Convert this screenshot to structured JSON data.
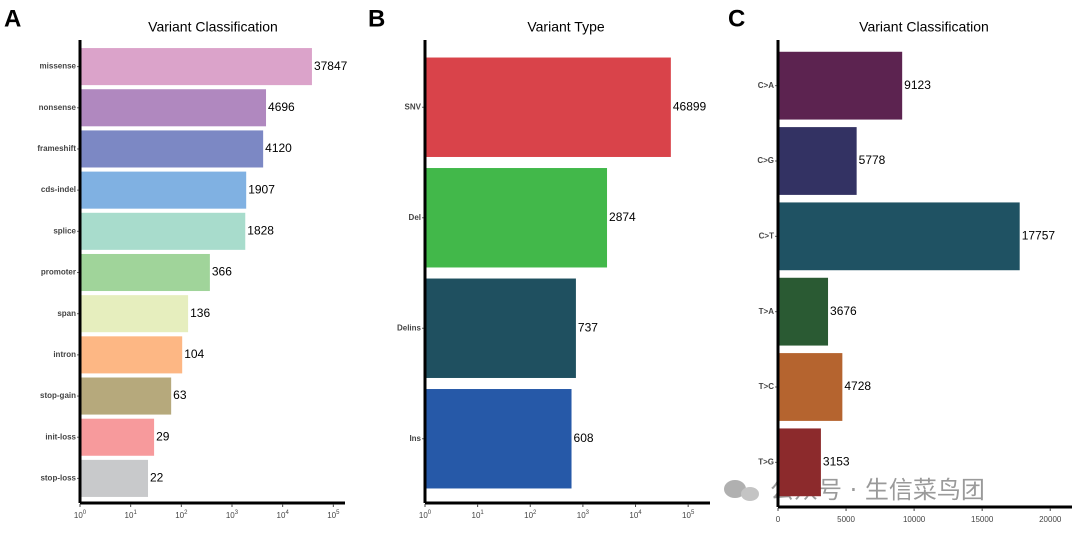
{
  "chart_data": [
    {
      "type": "bar",
      "orientation": "horizontal",
      "panel": "A",
      "title": "Variant Classification",
      "categories": [
        "missense",
        "nonsense",
        "frameshift",
        "cds-indel",
        "splice",
        "promoter",
        "span",
        "intron",
        "stop-gain",
        "init-loss",
        "stop-loss"
      ],
      "values": [
        37847,
        4696,
        4120,
        1907,
        1828,
        366,
        136,
        104,
        63,
        29,
        22
      ],
      "colors": [
        "#dba3ca",
        "#b088bf",
        "#7c88c4",
        "#80b1e2",
        "#a8dccc",
        "#a0d49a",
        "#e6eebe",
        "#fdb784",
        "#b6a97c",
        "#f79a9c",
        "#c8c9cb"
      ],
      "xscale": "log",
      "xlim": [
        1,
        170000
      ],
      "xticks": [
        {
          "value": 1,
          "label": "10^0"
        },
        {
          "value": 10,
          "label": "10^1"
        },
        {
          "value": 100,
          "label": "10^2"
        },
        {
          "value": 1000,
          "label": "10^3"
        },
        {
          "value": 10000,
          "label": "10^4"
        },
        {
          "value": 100000,
          "label": "10^5"
        }
      ]
    },
    {
      "type": "bar",
      "orientation": "horizontal",
      "panel": "B",
      "title": "Variant Type",
      "categories": [
        "SNV",
        "Del",
        "Delins",
        "Ins"
      ],
      "values": [
        46899,
        2874,
        737,
        608
      ],
      "colors": [
        "#d9434a",
        "#42b84a",
        "#1f5060",
        "#2659a8"
      ],
      "xscale": "log",
      "xlim": [
        1,
        260000
      ],
      "xticks": [
        {
          "value": 1,
          "label": "10^0"
        },
        {
          "value": 10,
          "label": "10^1"
        },
        {
          "value": 100,
          "label": "10^2"
        },
        {
          "value": 1000,
          "label": "10^3"
        },
        {
          "value": 10000,
          "label": "10^4"
        },
        {
          "value": 100000,
          "label": "10^5"
        }
      ]
    },
    {
      "type": "bar",
      "orientation": "horizontal",
      "panel": "C",
      "title": "Variant Classification",
      "categories": [
        "C>A",
        "C>G",
        "C>T",
        "T>A",
        "T>C",
        "T>G"
      ],
      "values": [
        9123,
        5778,
        17757,
        3676,
        4728,
        3153
      ],
      "colors": [
        "#5c2350",
        "#333263",
        "#1f5263",
        "#2a5a33",
        "#b5642f",
        "#8c2a2c"
      ],
      "xscale": "linear",
      "xlim": [
        0,
        21600
      ],
      "xticks": [
        0,
        5000,
        10000,
        15000,
        20000
      ]
    }
  ],
  "watermark": "公众号 · 生信菜鸟团"
}
